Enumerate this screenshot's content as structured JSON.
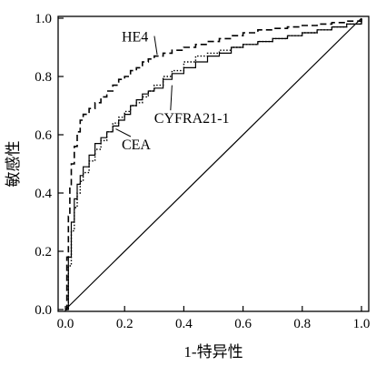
{
  "chart_data": {
    "type": "line",
    "title": "",
    "xlabel": "1-特异性",
    "ylabel": "敏感性",
    "xlim": [
      0,
      1
    ],
    "ylim": [
      0,
      1
    ],
    "x_ticks": [
      "0.0",
      "0.2",
      "0.4",
      "0.6",
      "0.8",
      "1.0"
    ],
    "y_ticks": [
      "0.0",
      "0.2",
      "0.4",
      "0.6",
      "0.8",
      "1.0"
    ],
    "grid": false,
    "legend": "none",
    "series": [
      {
        "name": "HE4",
        "style": "dashed",
        "x": [
          0,
          0.005,
          0.01,
          0.015,
          0.02,
          0.03,
          0.04,
          0.05,
          0.06,
          0.08,
          0.1,
          0.12,
          0.14,
          0.16,
          0.18,
          0.2,
          0.22,
          0.24,
          0.26,
          0.28,
          0.3,
          0.33,
          0.36,
          0.4,
          0.44,
          0.48,
          0.52,
          0.56,
          0.6,
          0.65,
          0.7,
          0.75,
          0.8,
          0.85,
          0.9,
          0.95,
          1.0
        ],
        "y": [
          0,
          0.18,
          0.32,
          0.42,
          0.5,
          0.56,
          0.61,
          0.65,
          0.67,
          0.69,
          0.71,
          0.73,
          0.75,
          0.77,
          0.79,
          0.8,
          0.82,
          0.83,
          0.85,
          0.86,
          0.87,
          0.88,
          0.89,
          0.9,
          0.91,
          0.92,
          0.93,
          0.94,
          0.95,
          0.96,
          0.965,
          0.97,
          0.975,
          0.98,
          0.985,
          0.99,
          1.0
        ]
      },
      {
        "name": "CEA",
        "style": "solid",
        "x": [
          0,
          0.01,
          0.02,
          0.03,
          0.04,
          0.05,
          0.06,
          0.08,
          0.1,
          0.12,
          0.14,
          0.16,
          0.18,
          0.2,
          0.22,
          0.24,
          0.26,
          0.28,
          0.3,
          0.33,
          0.36,
          0.4,
          0.44,
          0.48,
          0.52,
          0.56,
          0.6,
          0.65,
          0.7,
          0.75,
          0.8,
          0.85,
          0.9,
          0.95,
          1.0
        ],
        "y": [
          0,
          0.18,
          0.3,
          0.38,
          0.43,
          0.46,
          0.49,
          0.53,
          0.57,
          0.59,
          0.61,
          0.63,
          0.65,
          0.67,
          0.7,
          0.72,
          0.74,
          0.75,
          0.76,
          0.79,
          0.81,
          0.83,
          0.85,
          0.87,
          0.88,
          0.9,
          0.91,
          0.92,
          0.93,
          0.94,
          0.95,
          0.96,
          0.97,
          0.98,
          1.0
        ]
      },
      {
        "name": "CYFRA21-1",
        "style": "dotted",
        "x": [
          0,
          0.01,
          0.02,
          0.03,
          0.04,
          0.05,
          0.06,
          0.08,
          0.1,
          0.12,
          0.14,
          0.16,
          0.18,
          0.2,
          0.22,
          0.24,
          0.26,
          0.28,
          0.3,
          0.33,
          0.36,
          0.4,
          0.44,
          0.48,
          0.52,
          0.56,
          0.6,
          0.65,
          0.7,
          0.75,
          0.8,
          0.85,
          0.9,
          0.95,
          1.0
        ],
        "y": [
          0,
          0.15,
          0.27,
          0.35,
          0.4,
          0.44,
          0.47,
          0.51,
          0.55,
          0.58,
          0.61,
          0.64,
          0.66,
          0.68,
          0.7,
          0.71,
          0.73,
          0.75,
          0.77,
          0.8,
          0.82,
          0.85,
          0.87,
          0.88,
          0.89,
          0.9,
          0.91,
          0.92,
          0.93,
          0.94,
          0.95,
          0.96,
          0.97,
          0.98,
          1.0
        ]
      },
      {
        "name": "",
        "style": "reference",
        "x": [
          0,
          1
        ],
        "y": [
          0,
          1
        ]
      }
    ],
    "annotations": [
      {
        "text": "HE4",
        "x": 0.19,
        "y": 0.92,
        "point_x": 0.31,
        "point_y": 0.875
      },
      {
        "text": "CYFRA21-1",
        "x": 0.3,
        "y": 0.64,
        "point_x": 0.36,
        "point_y": 0.77
      },
      {
        "text": "CEA",
        "x": 0.19,
        "y": 0.55,
        "point_x": 0.17,
        "point_y": 0.62
      }
    ]
  }
}
